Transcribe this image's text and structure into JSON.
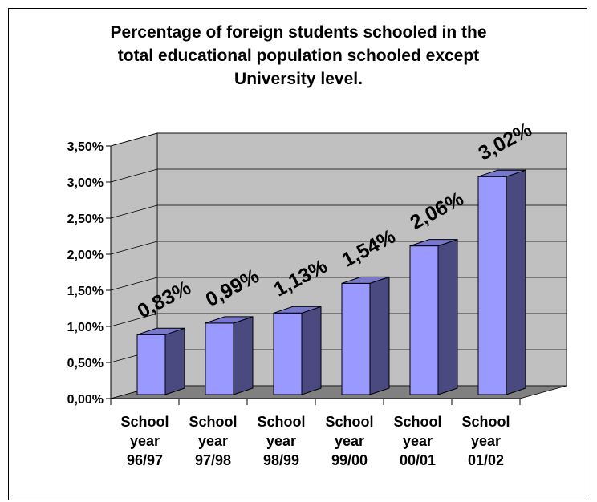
{
  "chart_data": {
    "type": "bar",
    "title_lines": [
      "Percentage of foreign students schooled in the",
      "total educational population schooled  except",
      "University level."
    ],
    "categories": [
      [
        "School",
        "year",
        "96/97"
      ],
      [
        "School",
        "year",
        "97/98"
      ],
      [
        "School",
        "year",
        "98/99"
      ],
      [
        "School",
        "year",
        "99/00"
      ],
      [
        "School",
        "year",
        "00/01"
      ],
      [
        "School",
        "year",
        "01/02"
      ]
    ],
    "values": [
      0.83,
      0.99,
      1.13,
      1.54,
      2.06,
      3.02
    ],
    "data_labels": [
      "0,83%",
      "0,99%",
      "1,13%",
      "1,54%",
      "2,06%",
      "3,02%"
    ],
    "y_ticks": [
      "0,00%",
      "0,50%",
      "1,00%",
      "1,50%",
      "2,00%",
      "2,50%",
      "3,00%",
      "3,50%"
    ],
    "ylim": [
      0,
      3.5
    ],
    "grid": true,
    "colors": {
      "bar_front": "#9999ff",
      "bar_side": "#4a4a80",
      "bar_top": "#7777cc",
      "wall": "#c0c0c0",
      "floor": "#808080"
    }
  }
}
